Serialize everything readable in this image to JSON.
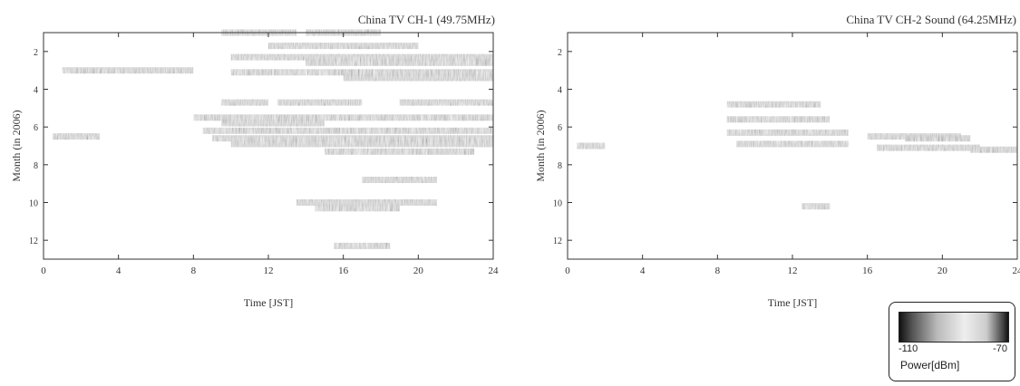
{
  "chart_data": [
    {
      "type": "heatmap",
      "title": "China TV CH-1 (49.75MHz)",
      "xlabel": "Time [JST]",
      "ylabel": "Month (in 2006)",
      "xlim": [
        0,
        24
      ],
      "ylim": [
        1,
        13
      ],
      "xticks": [
        "0",
        "4",
        "8",
        "12",
        "16",
        "20",
        "24"
      ],
      "yticks": [
        "2",
        "4",
        "6",
        "8",
        "10",
        "12"
      ],
      "value_range": [
        -110,
        -70
      ],
      "bands": [
        {
          "month": 1.0,
          "start": 9.5,
          "end": 13.5,
          "power": -92
        },
        {
          "month": 1.0,
          "start": 14.0,
          "end": 18.0,
          "power": -96
        },
        {
          "month": 1.7,
          "start": 12.0,
          "end": 20.0,
          "power": -100
        },
        {
          "month": 2.3,
          "start": 10.0,
          "end": 24.0,
          "power": -88
        },
        {
          "month": 2.6,
          "start": 14.0,
          "end": 24.0,
          "power": -96
        },
        {
          "month": 3.0,
          "start": 1.0,
          "end": 8.0,
          "power": -90
        },
        {
          "month": 3.1,
          "start": 10.0,
          "end": 24.0,
          "power": -84
        },
        {
          "month": 3.4,
          "start": 16.0,
          "end": 24.0,
          "power": -90
        },
        {
          "month": 4.7,
          "start": 9.5,
          "end": 12.0,
          "power": -90
        },
        {
          "month": 4.7,
          "start": 12.5,
          "end": 17.0,
          "power": -96
        },
        {
          "month": 4.7,
          "start": 19.0,
          "end": 24.0,
          "power": -94
        },
        {
          "month": 5.5,
          "start": 8.0,
          "end": 24.0,
          "power": -96
        },
        {
          "month": 5.8,
          "start": 9.5,
          "end": 15.0,
          "power": -86
        },
        {
          "month": 6.2,
          "start": 8.5,
          "end": 24.0,
          "power": -88
        },
        {
          "month": 6.5,
          "start": 0.5,
          "end": 3.0,
          "power": -86
        },
        {
          "month": 6.6,
          "start": 9.0,
          "end": 24.0,
          "power": -84
        },
        {
          "month": 6.9,
          "start": 10.0,
          "end": 24.0,
          "power": -90
        },
        {
          "month": 7.3,
          "start": 15.0,
          "end": 23.0,
          "power": -96
        },
        {
          "month": 8.8,
          "start": 17.0,
          "end": 21.0,
          "power": -104
        },
        {
          "month": 10.0,
          "start": 13.5,
          "end": 21.0,
          "power": -100
        },
        {
          "month": 10.3,
          "start": 14.5,
          "end": 19.0,
          "power": -90
        },
        {
          "month": 12.3,
          "start": 15.5,
          "end": 18.5,
          "power": -102
        }
      ]
    },
    {
      "type": "heatmap",
      "title": "China TV CH-2 Sound (64.25MHz)",
      "xlabel": "Time [JST]",
      "ylabel": "Month (in 2006)",
      "xlim": [
        0,
        24
      ],
      "ylim": [
        1,
        13
      ],
      "xticks": [
        "0",
        "4",
        "8",
        "12",
        "16",
        "20",
        "24"
      ],
      "yticks": [
        "2",
        "4",
        "6",
        "8",
        "10",
        "12"
      ],
      "value_range": [
        -110,
        -70
      ],
      "bands": [
        {
          "month": 4.8,
          "start": 8.5,
          "end": 13.5,
          "power": -100
        },
        {
          "month": 5.6,
          "start": 8.5,
          "end": 14.0,
          "power": -104
        },
        {
          "month": 6.3,
          "start": 8.5,
          "end": 15.0,
          "power": -100
        },
        {
          "month": 6.5,
          "start": 16.0,
          "end": 21.0,
          "power": -96
        },
        {
          "month": 6.6,
          "start": 18.0,
          "end": 21.5,
          "power": -88
        },
        {
          "month": 6.9,
          "start": 9.0,
          "end": 15.0,
          "power": -102
        },
        {
          "month": 7.1,
          "start": 16.5,
          "end": 22.0,
          "power": -104
        },
        {
          "month": 7.2,
          "start": 21.5,
          "end": 24.0,
          "power": -106
        },
        {
          "month": 10.2,
          "start": 12.5,
          "end": 14.0,
          "power": -84
        },
        {
          "month": 7.0,
          "start": 0.5,
          "end": 2.0,
          "power": -106
        }
      ]
    }
  ],
  "legend": {
    "min_label": "-110",
    "max_label": "-70",
    "label": "Power[dBm]"
  }
}
